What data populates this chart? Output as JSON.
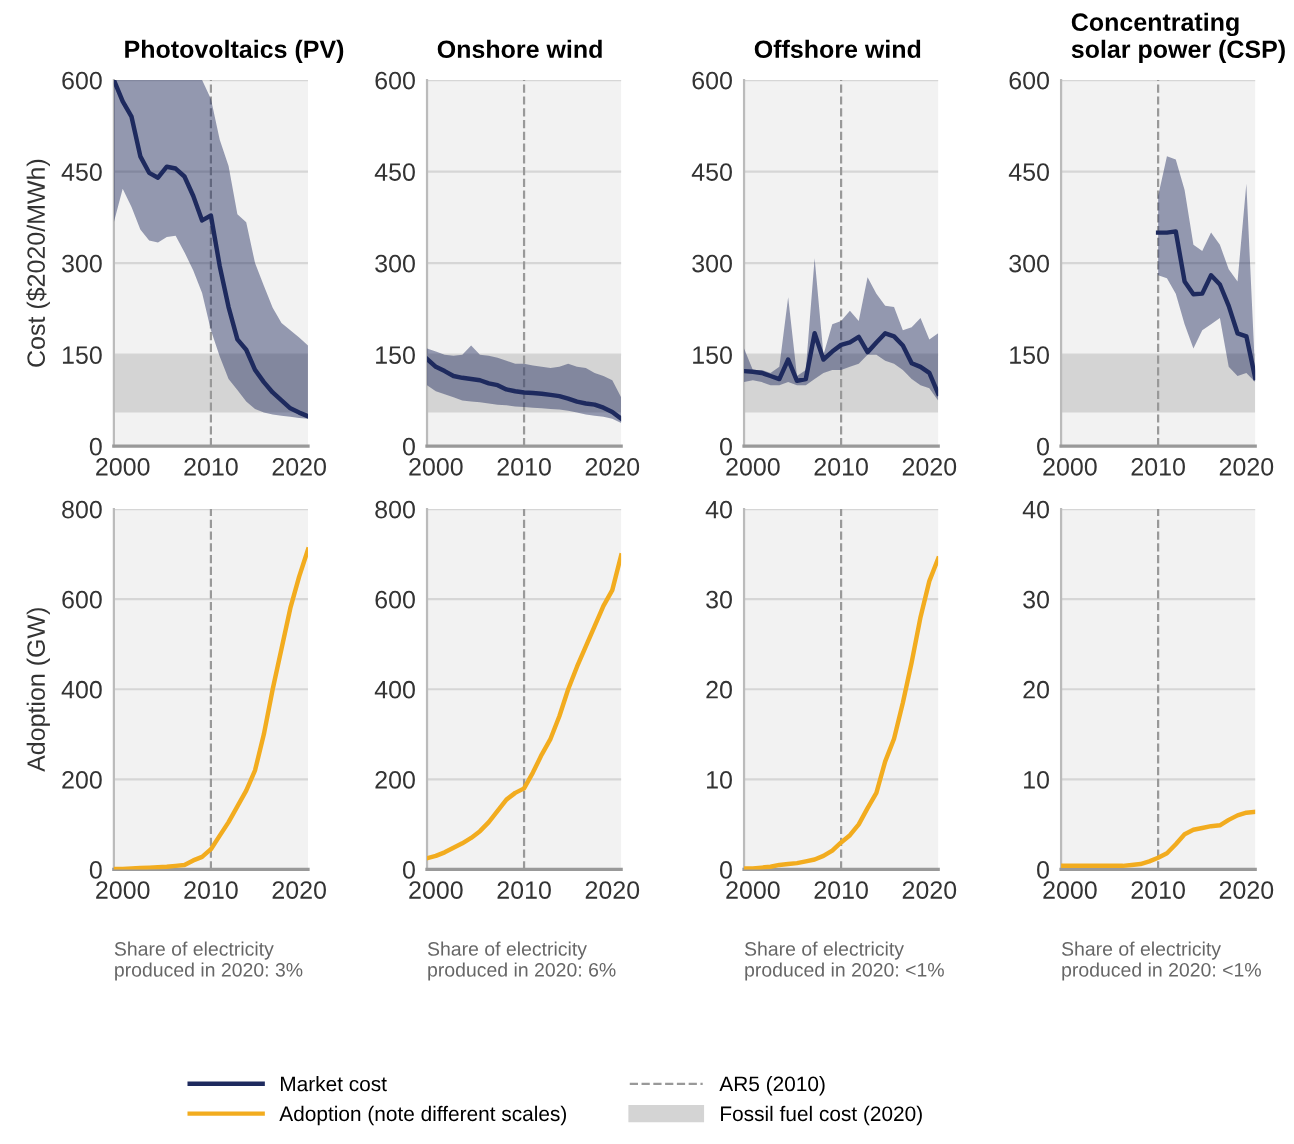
{
  "chart_data": [
    {
      "type": "line",
      "title": "Photovoltaics (PV)",
      "ylabel": "Cost ($2020/MWh)",
      "x": [
        1999,
        2000,
        2001,
        2002,
        2003,
        2004,
        2005,
        2006,
        2007,
        2008,
        2009,
        2010,
        2011,
        2012,
        2013,
        2014,
        2015,
        2016,
        2017,
        2018,
        2019,
        2020,
        2021
      ],
      "xlim": [
        1999,
        2021
      ],
      "xticks": [
        2000,
        2010,
        2020
      ],
      "ylim": [
        0,
        600
      ],
      "yticks": [
        0,
        150,
        300,
        450,
        600
      ],
      "grid": "y",
      "legend": "bottom",
      "series": [
        {
          "name": "Market cost",
          "color": "#1e2a5e",
          "values": [
            600,
            565,
            540,
            475,
            448,
            440,
            458,
            455,
            442,
            410,
            370,
            378,
            295,
            228,
            175,
            158,
            125,
            105,
            88,
            75,
            62,
            55,
            49
          ],
          "lower": [
            367,
            422,
            392,
            355,
            337,
            334,
            343,
            345,
            318,
            288,
            251,
            190,
            147,
            110,
            92,
            73,
            61,
            55,
            52,
            50,
            48,
            46,
            45
          ],
          "upper": [
            600,
            600,
            600,
            600,
            600,
            600,
            600,
            600,
            600,
            600,
            600,
            569,
            502,
            459,
            380,
            367,
            300,
            263,
            227,
            202,
            190,
            178,
            165
          ]
        }
      ],
      "ref_lines": [
        {
          "axis": "x",
          "value": 2010,
          "label": "AR5 (2010)",
          "color": "#999999",
          "line_style": "dashed"
        }
      ],
      "bands": [
        {
          "axis": "y",
          "from": 55,
          "to": 150,
          "label": "Fossil fuel cost (2020)",
          "color": "#d4d4d4"
        }
      ]
    },
    {
      "type": "line",
      "title": "Onshore wind",
      "x": [
        1999,
        2000,
        2001,
        2002,
        2003,
        2004,
        2005,
        2006,
        2007,
        2008,
        2009,
        2010,
        2011,
        2012,
        2013,
        2014,
        2015,
        2016,
        2017,
        2018,
        2019,
        2020,
        2021
      ],
      "xlim": [
        1999,
        2021
      ],
      "xticks": [
        2000,
        2010,
        2020
      ],
      "ylim": [
        0,
        600
      ],
      "yticks": [
        0,
        150,
        300,
        450,
        600
      ],
      "grid": "y",
      "series": [
        {
          "color": "#1e2a5e",
          "values": [
            143,
            130,
            123,
            115,
            112,
            110,
            108,
            103,
            100,
            93,
            90,
            88,
            87,
            86,
            84,
            82,
            78,
            73,
            70,
            68,
            63,
            56,
            45
          ],
          "lower": [
            100,
            90,
            85,
            80,
            75,
            73,
            72,
            70,
            68,
            67,
            65,
            64,
            63,
            62,
            61,
            60,
            58,
            55,
            52,
            50,
            48,
            45,
            38
          ],
          "upper": [
            160,
            155,
            150,
            148,
            150,
            165,
            150,
            148,
            145,
            140,
            135,
            135,
            132,
            130,
            128,
            130,
            135,
            130,
            128,
            120,
            115,
            108,
            80
          ]
        }
      ],
      "ref_lines": [
        {
          "axis": "x",
          "value": 2010,
          "color": "#999999",
          "line_style": "dashed"
        }
      ],
      "bands": [
        {
          "axis": "y",
          "from": 55,
          "to": 150,
          "color": "#d4d4d4"
        }
      ]
    },
    {
      "type": "line",
      "title": "Offshore wind",
      "x": [
        1999,
        2000,
        2001,
        2002,
        2003,
        2004,
        2005,
        2006,
        2007,
        2008,
        2009,
        2010,
        2011,
        2012,
        2013,
        2014,
        2015,
        2016,
        2017,
        2018,
        2019,
        2020,
        2021
      ],
      "xlim": [
        1999,
        2021
      ],
      "xticks": [
        2000,
        2010,
        2020
      ],
      "ylim": [
        0,
        600
      ],
      "yticks": [
        0,
        150,
        300,
        450,
        600
      ],
      "grid": "y",
      "series": [
        {
          "color": "#1e2a5e",
          "values": [
            123,
            122,
            120,
            115,
            110,
            142,
            107,
            110,
            185,
            142,
            155,
            166,
            170,
            179,
            154,
            170,
            185,
            180,
            165,
            136,
            130,
            120,
            86
          ],
          "lower": [
            105,
            108,
            105,
            100,
            100,
            105,
            100,
            100,
            110,
            120,
            125,
            125,
            130,
            135,
            150,
            150,
            140,
            135,
            125,
            110,
            100,
            95,
            75
          ],
          "upper": [
            160,
            125,
            125,
            120,
            130,
            244,
            115,
            125,
            308,
            150,
            200,
            205,
            222,
            205,
            277,
            250,
            230,
            228,
            190,
            195,
            210,
            175,
            185
          ]
        }
      ],
      "ref_lines": [
        {
          "axis": "x",
          "value": 2010,
          "color": "#999999",
          "line_style": "dashed"
        }
      ],
      "bands": [
        {
          "axis": "y",
          "from": 55,
          "to": 150,
          "color": "#d4d4d4"
        }
      ]
    },
    {
      "type": "line",
      "title": "Concentrating\nsolar power (CSP)",
      "x": [
        2010,
        2011,
        2012,
        2013,
        2014,
        2015,
        2016,
        2017,
        2018,
        2019,
        2020,
        2021
      ],
      "xlim": [
        1999,
        2021
      ],
      "xticks": [
        2000,
        2010,
        2020
      ],
      "ylim": [
        0,
        600
      ],
      "yticks": [
        0,
        150,
        300,
        450,
        600
      ],
      "grid": "y",
      "series": [
        {
          "color": "#1e2a5e",
          "values": [
            350,
            350,
            352,
            270,
            249,
            250,
            280,
            265,
            230,
            185,
            180,
            112
          ],
          "lower": [
            280,
            275,
            250,
            200,
            160,
            190,
            200,
            210,
            130,
            115,
            120,
            105
          ],
          "upper": [
            410,
            475,
            470,
            420,
            330,
            320,
            350,
            330,
            290,
            270,
            430,
            120
          ]
        }
      ],
      "ref_lines": [
        {
          "axis": "x",
          "value": 2010,
          "color": "#999999",
          "line_style": "dashed"
        }
      ],
      "bands": [
        {
          "axis": "y",
          "from": 55,
          "to": 150,
          "color": "#d4d4d4"
        }
      ]
    },
    {
      "type": "line",
      "ylabel": "Adoption (GW)",
      "x": [
        1999,
        2000,
        2001,
        2002,
        2003,
        2004,
        2005,
        2006,
        2007,
        2008,
        2009,
        2010,
        2011,
        2012,
        2013,
        2014,
        2015,
        2016,
        2017,
        2018,
        2019,
        2020,
        2021
      ],
      "xlim": [
        1999,
        2021
      ],
      "xticks": [
        2000,
        2010,
        2020
      ],
      "ylim": [
        0,
        800
      ],
      "yticks": [
        0,
        200,
        400,
        600,
        800
      ],
      "grid": "y",
      "series": [
        {
          "name": "Adoption (note different scales)",
          "color": "#f2ac1f",
          "values": [
            1,
            1,
            2,
            3,
            4,
            5,
            6,
            8,
            10,
            20,
            28,
            45,
            75,
            105,
            140,
            175,
            220,
            300,
            400,
            490,
            580,
            650,
            710
          ]
        }
      ],
      "ref_lines": [
        {
          "axis": "x",
          "value": 2010,
          "color": "#999999",
          "line_style": "dashed"
        }
      ],
      "annotations": [
        "Share of electricity\nproduced in 2020: 3%"
      ]
    },
    {
      "type": "line",
      "x": [
        1999,
        2000,
        2001,
        2002,
        2003,
        2004,
        2005,
        2006,
        2007,
        2008,
        2009,
        2010,
        2011,
        2012,
        2013,
        2014,
        2015,
        2016,
        2017,
        2018,
        2019,
        2020,
        2021
      ],
      "xlim": [
        1999,
        2021
      ],
      "xticks": [
        2000,
        2010,
        2020
      ],
      "ylim": [
        0,
        800
      ],
      "yticks": [
        0,
        200,
        400,
        600,
        800
      ],
      "grid": "y",
      "series": [
        {
          "color": "#f2ac1f",
          "values": [
            25,
            30,
            38,
            48,
            58,
            70,
            85,
            105,
            130,
            155,
            170,
            180,
            215,
            255,
            290,
            340,
            400,
            450,
            495,
            540,
            585,
            620,
            697
          ]
        }
      ],
      "ref_lines": [
        {
          "axis": "x",
          "value": 2010,
          "color": "#999999",
          "line_style": "dashed"
        }
      ],
      "annotations": [
        "Share of electricity\nproduced in 2020: 6%"
      ]
    },
    {
      "type": "line",
      "x": [
        1999,
        2000,
        2001,
        2002,
        2003,
        2004,
        2005,
        2006,
        2007,
        2008,
        2009,
        2010,
        2011,
        2012,
        2013,
        2014,
        2015,
        2016,
        2017,
        2018,
        2019,
        2020,
        2021
      ],
      "xlim": [
        1999,
        2021
      ],
      "xticks": [
        2000,
        2010,
        2020
      ],
      "ylim": [
        0,
        40
      ],
      "yticks": [
        0,
        10,
        20,
        30,
        40
      ],
      "grid": "y",
      "series": [
        {
          "color": "#f2ac1f",
          "values": [
            0.1,
            0.1,
            0.2,
            0.3,
            0.5,
            0.6,
            0.7,
            0.9,
            1.1,
            1.5,
            2.1,
            3.0,
            3.8,
            5.0,
            6.8,
            8.5,
            12,
            14.5,
            18.5,
            23,
            28,
            32,
            34.5
          ]
        }
      ],
      "ref_lines": [
        {
          "axis": "x",
          "value": 2010,
          "color": "#999999",
          "line_style": "dashed"
        }
      ],
      "annotations": [
        "Share of electricity\nproduced in 2020: <1%"
      ]
    },
    {
      "type": "line",
      "x": [
        1999,
        2000,
        2001,
        2002,
        2003,
        2004,
        2005,
        2006,
        2007,
        2008,
        2009,
        2010,
        2011,
        2012,
        2013,
        2014,
        2015,
        2016,
        2017,
        2018,
        2019,
        2020,
        2021
      ],
      "xlim": [
        1999,
        2021
      ],
      "xticks": [
        2000,
        2010,
        2020
      ],
      "ylim": [
        0,
        40
      ],
      "yticks": [
        0,
        10,
        20,
        30,
        40
      ],
      "grid": "y",
      "series": [
        {
          "color": "#f2ac1f",
          "values": [
            0.4,
            0.4,
            0.4,
            0.4,
            0.4,
            0.4,
            0.4,
            0.4,
            0.5,
            0.6,
            0.9,
            1.3,
            1.8,
            2.8,
            3.9,
            4.4,
            4.6,
            4.8,
            4.9,
            5.5,
            6.0,
            6.3,
            6.4
          ]
        }
      ],
      "ref_lines": [
        {
          "axis": "x",
          "value": 2010,
          "color": "#999999",
          "line_style": "dashed"
        }
      ],
      "annotations": [
        "Share of electricity\nproduced in 2020: <1%"
      ]
    }
  ]
}
